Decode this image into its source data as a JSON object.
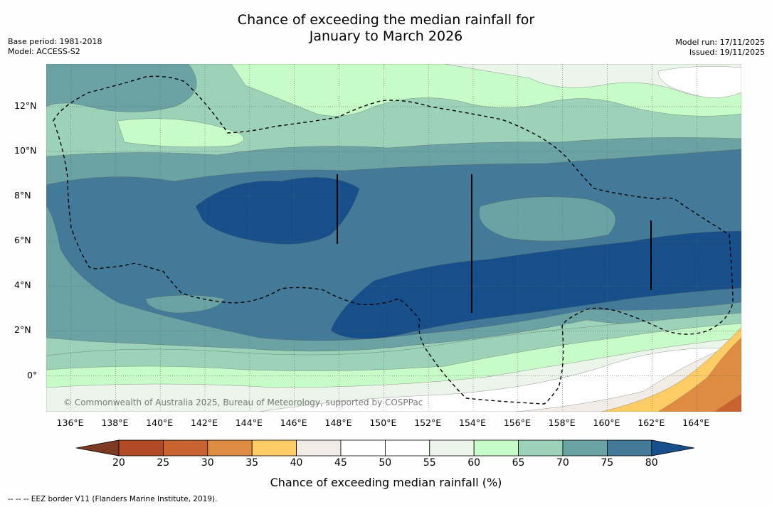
{
  "title_line1": "Chance of exceeding the median rainfall for",
  "title_line2": "January to March 2026",
  "base_period": "Base period: 1981-2018",
  "model": "Model: ACCESS-S2",
  "model_run": "Model run: 17/11/2025",
  "issued": "Issued: 19/11/2025",
  "copyright": "© Commonwealth of Australia 2025, Bureau of Meteorology, supported by COSPPac",
  "x_ticks": [
    "136°E",
    "138°E",
    "140°E",
    "142°E",
    "144°E",
    "146°E",
    "148°E",
    "150°E",
    "152°E",
    "154°E",
    "156°E",
    "158°E",
    "160°E",
    "162°E",
    "164°E"
  ],
  "y_ticks": [
    "12°N",
    "10°N",
    "8°N",
    "6°N",
    "4°N",
    "2°N",
    "0°"
  ],
  "colorbar": {
    "ticks": [
      "20",
      "25",
      "30",
      "35",
      "40",
      "45",
      "50",
      "55",
      "60",
      "65",
      "70",
      "75",
      "80"
    ],
    "colors": [
      "#7b3a24",
      "#b24a26",
      "#c8632f",
      "#df8c43",
      "#fdcc65",
      "#f1ece6",
      "#ffffff",
      "#ffffff",
      "#ebf5ea",
      "#c7fbc8",
      "#9bd2b8",
      "#6ba2a4",
      "#437a99",
      "#174f8b"
    ],
    "title": "Chance of exceeding median rainfall (%)"
  },
  "footnote": "--  --  -- EEZ border V11 (Flanders Marine Institute, 2019).",
  "map_colors": {
    "c45": "#f1ece6",
    "c50": "#ffffff",
    "c55": "#ebf5ea",
    "c60": "#c7fbc8",
    "c65": "#9bd2b8",
    "c70": "#6ba2a4",
    "c75": "#437a99",
    "c80": "#174f8b",
    "c35": "#fdcc65",
    "c30": "#df8c43",
    "c25": "#c8632f"
  }
}
